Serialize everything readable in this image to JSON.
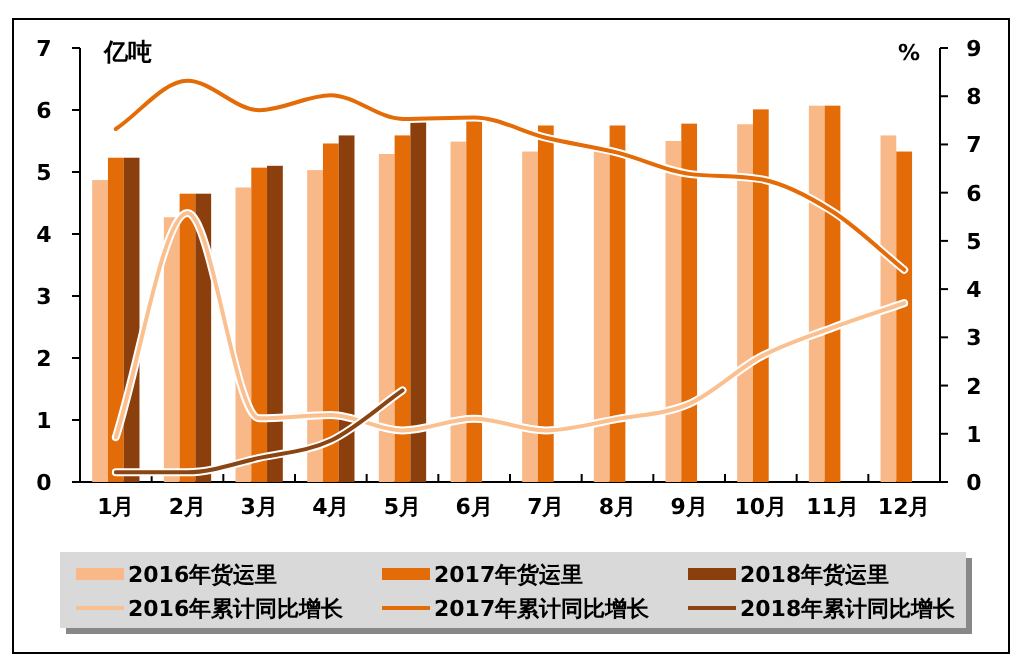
{
  "chart_data": {
    "type": "bar",
    "ylabel": "亿吨",
    "y2label": "%",
    "categories": [
      "1月",
      "2月",
      "3月",
      "4月",
      "5月",
      "6月",
      "7月",
      "8月",
      "9月",
      "10月",
      "11月",
      "12月"
    ],
    "ylim": [
      0,
      7
    ],
    "yticks": [
      0,
      1,
      2,
      3,
      4,
      5,
      6,
      7
    ],
    "y2lim": [
      0,
      9
    ],
    "y2ticks": [
      0,
      1,
      2,
      3,
      4,
      5,
      6,
      7,
      8,
      9
    ],
    "grid": false,
    "legend": "bottom",
    "series": [
      {
        "name": "2016年货运里",
        "color": "#f8b888",
        "values": [
          4.87,
          4.27,
          4.75,
          5.03,
          5.29,
          5.49,
          5.33,
          5.42,
          5.5,
          5.77,
          6.07,
          5.59
        ]
      },
      {
        "name": "2017年货运里",
        "color": "#e36c09",
        "values": [
          5.23,
          4.65,
          5.07,
          5.46,
          5.59,
          5.91,
          5.75,
          5.75,
          5.78,
          6.01,
          6.07,
          5.33
        ]
      },
      {
        "name": "2018年货运里",
        "color": "#8b3f0c",
        "values": [
          5.23,
          4.65,
          5.1,
          5.59,
          5.87,
          null,
          null,
          null,
          null,
          null,
          null,
          null
        ]
      },
      {
        "name": "2016年累计同比增长",
        "type": "line",
        "axis": "y2",
        "color": "#fac090",
        "values": [
          0.93,
          5.58,
          1.32,
          1.39,
          1.07,
          1.31,
          1.07,
          1.31,
          1.62,
          2.6,
          3.2,
          3.71
        ]
      },
      {
        "name": "2017年累计同比增长",
        "type": "line",
        "axis": "y2",
        "color": "#e36c09",
        "values": [
          7.32,
          8.32,
          7.71,
          8.02,
          7.53,
          7.56,
          7.14,
          6.83,
          6.39,
          6.28,
          5.61,
          4.4
        ]
      },
      {
        "name": "2018年累计同比增长",
        "type": "line",
        "axis": "y2",
        "color": "#8b4513",
        "values": [
          0.2,
          0.2,
          0.5,
          0.86,
          1.9,
          null,
          null,
          null,
          null,
          null,
          null,
          null
        ]
      }
    ]
  }
}
